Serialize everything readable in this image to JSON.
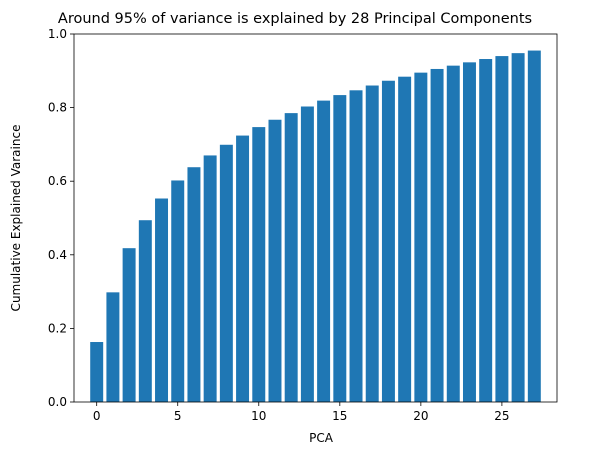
{
  "chart_data": {
    "type": "bar",
    "title": "Around 95% of variance is explained by 28 Principal Components",
    "xlabel": "PCA",
    "ylabel": "Cumulative Explained Varaince",
    "x": [
      0,
      1,
      2,
      3,
      4,
      5,
      6,
      7,
      8,
      9,
      10,
      11,
      12,
      13,
      14,
      15,
      16,
      17,
      18,
      19,
      20,
      21,
      22,
      23,
      24,
      25,
      26,
      27
    ],
    "values": [
      0.163,
      0.298,
      0.418,
      0.494,
      0.553,
      0.602,
      0.638,
      0.67,
      0.699,
      0.724,
      0.747,
      0.767,
      0.785,
      0.803,
      0.819,
      0.834,
      0.847,
      0.86,
      0.873,
      0.884,
      0.895,
      0.905,
      0.914,
      0.923,
      0.932,
      0.94,
      0.948,
      0.955
    ],
    "xlim": [
      -1.4,
      28.4
    ],
    "ylim": [
      0,
      1.0
    ],
    "xticks": [
      0,
      5,
      10,
      15,
      20,
      25
    ],
    "yticks": [
      0.0,
      0.2,
      0.4,
      0.6,
      0.8,
      1.0
    ],
    "ytick_labels": [
      "0.0",
      "0.2",
      "0.4",
      "0.6",
      "0.8",
      "1.0"
    ],
    "bar_color": "#1f77b4",
    "grid": false,
    "legend": false
  }
}
